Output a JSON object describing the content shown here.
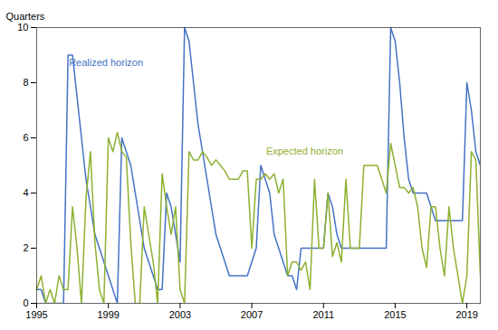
{
  "chart_data": {
    "type": "line",
    "ylabel": "Quarters",
    "x": [
      1995.0,
      1995.25,
      1995.5,
      1995.75,
      1996.0,
      1996.25,
      1996.5,
      1996.75,
      1997.0,
      1997.25,
      1997.5,
      1997.75,
      1998.0,
      1998.25,
      1998.5,
      1998.75,
      1999.0,
      1999.25,
      1999.5,
      1999.75,
      2000.0,
      2000.25,
      2000.5,
      2000.75,
      2001.0,
      2001.25,
      2001.5,
      2001.75,
      2002.0,
      2002.25,
      2002.5,
      2002.75,
      2003.0,
      2003.25,
      2003.5,
      2003.75,
      2004.0,
      2004.25,
      2004.5,
      2004.75,
      2005.0,
      2005.25,
      2005.5,
      2005.75,
      2006.0,
      2006.25,
      2006.5,
      2006.75,
      2007.0,
      2007.25,
      2007.5,
      2007.75,
      2008.0,
      2008.25,
      2008.5,
      2008.75,
      2009.0,
      2009.25,
      2009.5,
      2009.75,
      2010.0,
      2010.25,
      2010.5,
      2010.75,
      2011.0,
      2011.25,
      2011.5,
      2011.75,
      2012.0,
      2012.25,
      2012.5,
      2012.75,
      2013.0,
      2013.25,
      2013.5,
      2013.75,
      2014.0,
      2014.25,
      2014.5,
      2014.75,
      2015.0,
      2015.25,
      2015.5,
      2015.75,
      2016.0,
      2016.25,
      2016.5,
      2016.75,
      2017.0,
      2017.25,
      2017.5,
      2017.75,
      2018.0,
      2018.25,
      2018.5,
      2018.75,
      2019.0,
      2019.25,
      2019.5,
      2019.75
    ],
    "series": [
      {
        "name": "Realized horizon",
        "color": "#4472C4",
        "values": [
          0.5,
          0.5,
          0.0,
          0.0,
          0.0,
          0.0,
          0.0,
          9.0,
          9.0,
          7.5,
          6.0,
          4.5,
          3.5,
          2.5,
          2.0,
          1.5,
          1.0,
          0.5,
          0.0,
          6.0,
          5.5,
          5.0,
          4.0,
          3.0,
          2.0,
          1.5,
          1.0,
          0.5,
          0.5,
          4.0,
          3.5,
          2.5,
          1.5,
          10.0,
          9.5,
          8.0,
          6.5,
          5.5,
          4.5,
          3.5,
          2.5,
          2.0,
          1.5,
          1.0,
          1.0,
          1.0,
          1.0,
          1.0,
          1.5,
          2.0,
          5.0,
          4.5,
          4.0,
          2.5,
          2.0,
          1.5,
          1.0,
          1.0,
          0.5,
          2.0,
          2.0,
          2.0,
          2.0,
          2.0,
          2.0,
          4.0,
          3.5,
          2.5,
          2.0,
          2.0,
          2.0,
          2.0,
          2.0,
          2.0,
          2.0,
          2.0,
          2.0,
          2.0,
          2.0,
          10.0,
          9.5,
          8.0,
          6.0,
          4.5,
          4.0,
          4.0,
          4.0,
          4.0,
          3.5,
          3.0,
          3.0,
          3.0,
          3.0,
          3.0,
          3.0,
          3.0,
          8.0,
          7.0,
          5.5,
          5.0
        ]
      },
      {
        "name": "Expected horizon",
        "color": "#8DB030",
        "values": [
          0.5,
          1.0,
          0.0,
          0.5,
          0.0,
          1.0,
          0.5,
          0.5,
          3.5,
          2.0,
          0.0,
          3.8,
          5.5,
          2.2,
          0.5,
          0.0,
          6.0,
          5.5,
          6.2,
          5.5,
          5.3,
          2.2,
          0.0,
          0.0,
          3.5,
          2.5,
          1.5,
          0.0,
          4.7,
          3.5,
          2.5,
          3.5,
          0.5,
          0.0,
          5.5,
          5.2,
          5.2,
          5.5,
          5.3,
          5.0,
          5.2,
          5.0,
          4.8,
          4.5,
          4.5,
          4.5,
          4.8,
          4.8,
          2.0,
          4.5,
          4.5,
          4.7,
          4.5,
          4.7,
          4.0,
          4.5,
          1.0,
          1.5,
          1.5,
          1.2,
          1.5,
          0.5,
          4.5,
          2.0,
          2.0,
          4.0,
          1.7,
          2.2,
          1.5,
          4.5,
          2.0,
          2.0,
          2.0,
          5.0,
          5.0,
          5.0,
          5.0,
          4.5,
          4.0,
          5.8,
          5.0,
          4.2,
          4.2,
          4.0,
          4.2,
          3.5,
          2.0,
          1.3,
          3.5,
          3.5,
          2.0,
          1.0,
          3.5,
          2.0,
          1.0,
          0.0,
          1.0,
          5.5,
          5.2,
          1.0
        ]
      }
    ],
    "annotations": [
      {
        "text": "Realized horizon",
        "x": 1996.8,
        "y": 8.6,
        "color": "#4472C4"
      },
      {
        "text": "Expected horizon",
        "x": 2007.8,
        "y": 5.4,
        "color": "#8DB030"
      }
    ],
    "xlim": [
      1995.0,
      2019.75
    ],
    "xticks": [
      1995,
      1999,
      2003,
      2007,
      2011,
      2015,
      2019
    ],
    "ylim": [
      0,
      10
    ],
    "yticks": [
      0,
      2,
      4,
      6,
      8,
      10
    ],
    "grid": false
  }
}
